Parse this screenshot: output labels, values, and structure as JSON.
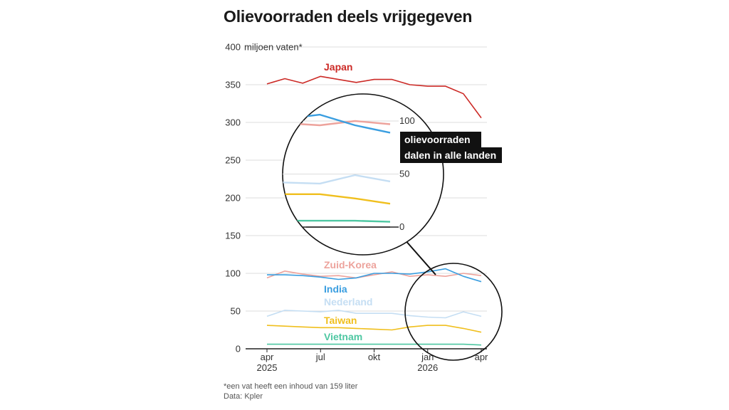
{
  "title": "Olievoorraden deels vrijgegeven",
  "footnote": "*een vat heeft een inhoud van 159 liter",
  "source": "Data: Kpler",
  "chart_data": {
    "type": "line",
    "title": "Olievoorraden deels vrijgegeven",
    "ylabel": "miljoen vaten*",
    "ylim": [
      0,
      400
    ],
    "yticks": [
      0,
      50,
      100,
      150,
      200,
      250,
      300,
      350,
      400
    ],
    "xticks": [
      {
        "x": "2025-04",
        "label": "apr",
        "year": "2025"
      },
      {
        "x": "2025-07",
        "label": "jul",
        "year": ""
      },
      {
        "x": "2025-10",
        "label": "okt",
        "year": ""
      },
      {
        "x": "2026-01",
        "label": "jan",
        "year": "2026"
      },
      {
        "x": "2026-04",
        "label": "apr",
        "year": ""
      }
    ],
    "x": [
      "2025-04",
      "2025-05",
      "2025-06",
      "2025-07",
      "2025-08",
      "2025-09",
      "2025-10",
      "2025-11",
      "2025-12",
      "2026-01",
      "2026-02",
      "2026-03",
      "2026-04"
    ],
    "grid": true,
    "series": [
      {
        "name": "Japan",
        "color": "#cc2a26",
        "values": [
          351,
          358,
          352,
          361,
          357,
          353,
          357,
          357,
          350,
          348,
          348,
          338,
          306
        ]
      },
      {
        "name": "Zuid-Korea",
        "color": "#eda39c",
        "values": [
          94,
          103,
          99,
          96,
          97,
          94,
          98,
          102,
          96,
          98,
          96,
          100,
          97
        ]
      },
      {
        "name": "India",
        "color": "#3a9ee0",
        "values": [
          98,
          98,
          97,
          95,
          92,
          94,
          100,
          100,
          99,
          102,
          106,
          96,
          89
        ]
      },
      {
        "name": "Nederland",
        "color": "#c5def3",
        "values": [
          43,
          51,
          50,
          49,
          51,
          47,
          47,
          47,
          44,
          42,
          41,
          49,
          43
        ]
      },
      {
        "name": "Taiwan",
        "color": "#f0bf1d",
        "values": [
          31,
          30,
          29,
          28,
          28,
          27,
          26,
          25,
          29,
          31,
          31,
          27,
          22
        ]
      },
      {
        "name": "Vietnam",
        "color": "#4ec7a2",
        "values": [
          6,
          6,
          6,
          6,
          6,
          6,
          6,
          6,
          6,
          6,
          6,
          6,
          5
        ]
      }
    ],
    "inset": {
      "x_range": [
        "2026-01",
        "2026-04"
      ],
      "ylim": [
        0,
        100
      ],
      "yticks": [
        0,
        50,
        100
      ],
      "annotation": [
        "olievoorraden",
        "dalen in alle landen"
      ]
    }
  }
}
